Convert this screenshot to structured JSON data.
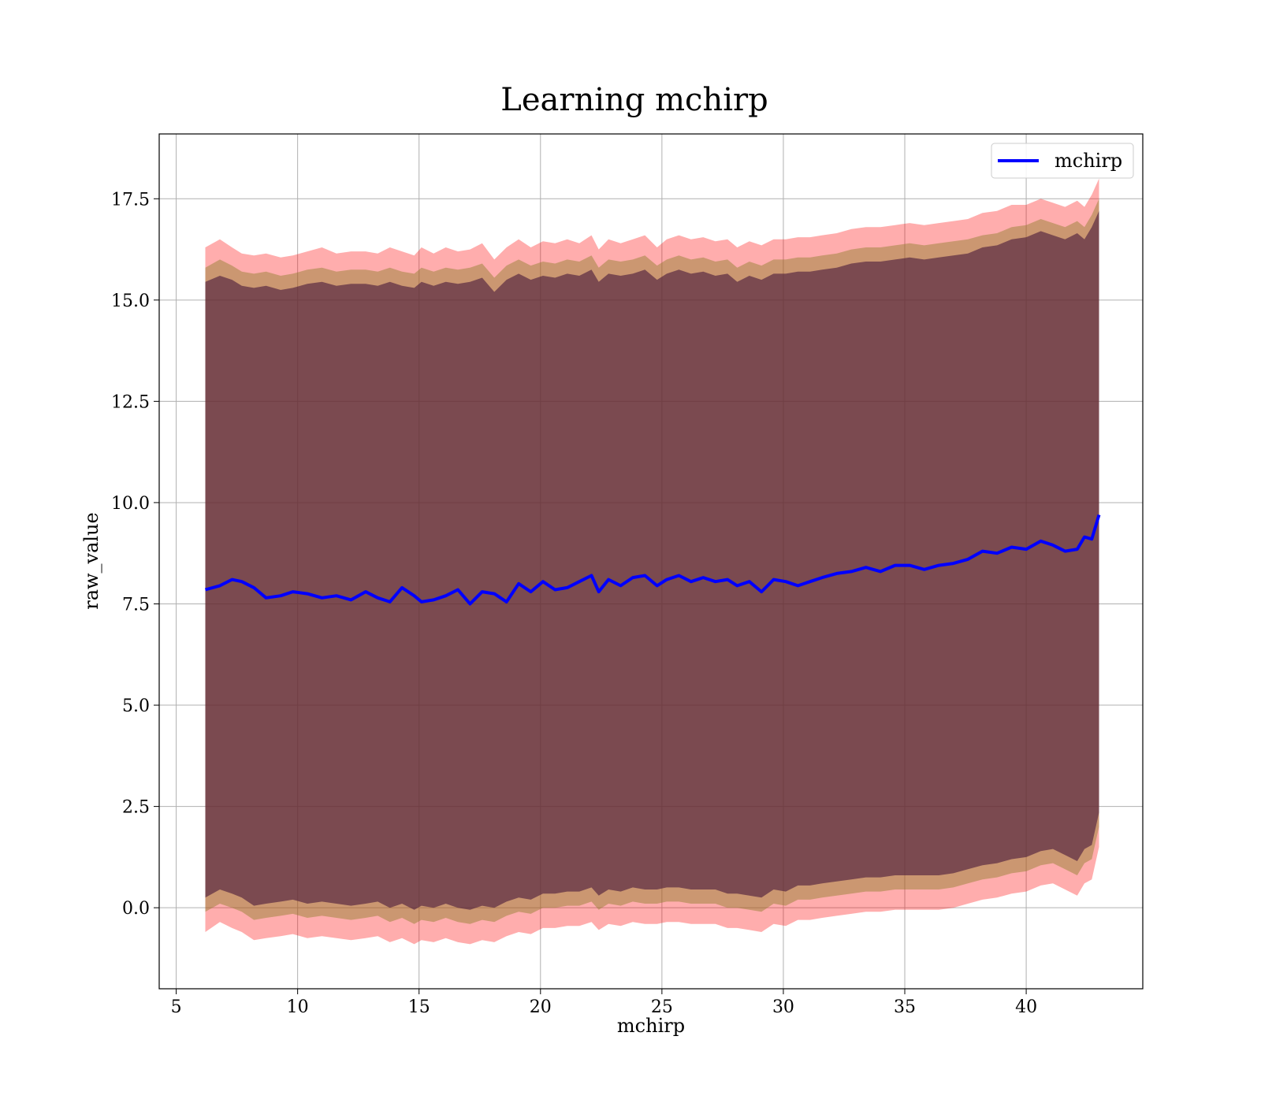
{
  "chart_data": {
    "type": "line",
    "title": "Learning mchirp",
    "xlabel": "mchirp",
    "ylabel": "raw_value",
    "xlim": [
      4.3,
      44.8
    ],
    "ylim": [
      -2.0,
      19.1
    ],
    "xticks": [
      5,
      10,
      15,
      20,
      25,
      30,
      35,
      40
    ],
    "yticks": [
      0.0,
      2.5,
      5.0,
      7.5,
      10.0,
      12.5,
      15.0,
      17.5
    ],
    "xtick_labels": [
      "5",
      "10",
      "15",
      "20",
      "25",
      "30",
      "35",
      "40"
    ],
    "ytick_labels": [
      "0.0",
      "2.5",
      "5.0",
      "7.5",
      "10.0",
      "12.5",
      "15.0",
      "17.5"
    ],
    "grid": true,
    "legend": {
      "position": "top-right",
      "entries": [
        "mchirp"
      ]
    },
    "series": [
      {
        "name": "mchirp",
        "color": "#0000ff",
        "x": [
          6.2,
          6.8,
          7.3,
          7.7,
          8.2,
          8.7,
          9.3,
          9.8,
          10.4,
          11.0,
          11.6,
          12.2,
          12.8,
          13.3,
          13.8,
          14.3,
          14.8,
          15.1,
          15.6,
          16.1,
          16.6,
          17.1,
          17.6,
          18.1,
          18.6,
          19.1,
          19.6,
          20.1,
          20.6,
          21.1,
          21.6,
          22.1,
          22.4,
          22.8,
          23.3,
          23.8,
          24.3,
          24.8,
          25.2,
          25.7,
          26.2,
          26.7,
          27.2,
          27.7,
          28.1,
          28.6,
          29.1,
          29.6,
          30.1,
          30.6,
          31.1,
          31.6,
          32.2,
          32.8,
          33.4,
          34.0,
          34.6,
          35.2,
          35.8,
          36.4,
          37.0,
          37.6,
          38.2,
          38.8,
          39.4,
          40.0,
          40.6,
          41.1,
          41.6,
          42.1,
          42.4,
          42.7,
          43.0
        ],
        "y": [
          7.85,
          7.95,
          8.1,
          8.05,
          7.9,
          7.65,
          7.7,
          7.8,
          7.75,
          7.65,
          7.7,
          7.6,
          7.8,
          7.65,
          7.55,
          7.9,
          7.7,
          7.55,
          7.6,
          7.7,
          7.85,
          7.5,
          7.8,
          7.75,
          7.55,
          8.0,
          7.8,
          8.05,
          7.85,
          7.9,
          8.05,
          8.2,
          7.8,
          8.1,
          7.95,
          8.15,
          8.2,
          7.95,
          8.1,
          8.2,
          8.05,
          8.15,
          8.05,
          8.1,
          7.95,
          8.05,
          7.8,
          8.1,
          8.05,
          7.95,
          8.05,
          8.15,
          8.25,
          8.3,
          8.4,
          8.3,
          8.45,
          8.45,
          8.35,
          8.45,
          8.5,
          8.6,
          8.8,
          8.75,
          8.9,
          8.85,
          9.05,
          8.95,
          8.8,
          8.85,
          9.15,
          9.1,
          9.7
        ]
      }
    ],
    "bands": [
      {
        "color": "#ff0000",
        "opacity": 0.32,
        "upper": [
          16.3,
          16.5,
          16.3,
          16.15,
          16.1,
          16.15,
          16.05,
          16.1,
          16.2,
          16.3,
          16.15,
          16.2,
          16.2,
          16.15,
          16.3,
          16.2,
          16.1,
          16.3,
          16.15,
          16.3,
          16.2,
          16.25,
          16.4,
          16.0,
          16.3,
          16.5,
          16.3,
          16.45,
          16.4,
          16.5,
          16.4,
          16.6,
          16.25,
          16.5,
          16.4,
          16.5,
          16.6,
          16.3,
          16.5,
          16.6,
          16.5,
          16.55,
          16.45,
          16.5,
          16.3,
          16.45,
          16.35,
          16.5,
          16.5,
          16.55,
          16.55,
          16.6,
          16.65,
          16.75,
          16.8,
          16.8,
          16.85,
          16.9,
          16.85,
          16.9,
          16.95,
          17.0,
          17.15,
          17.2,
          17.35,
          17.35,
          17.5,
          17.4,
          17.3,
          17.45,
          17.3,
          17.6,
          18.0
        ],
        "lower": [
          -0.6,
          -0.35,
          -0.5,
          -0.6,
          -0.8,
          -0.75,
          -0.7,
          -0.65,
          -0.75,
          -0.7,
          -0.75,
          -0.8,
          -0.75,
          -0.7,
          -0.85,
          -0.75,
          -0.9,
          -0.8,
          -0.85,
          -0.75,
          -0.85,
          -0.9,
          -0.8,
          -0.85,
          -0.7,
          -0.6,
          -0.65,
          -0.5,
          -0.5,
          -0.45,
          -0.45,
          -0.35,
          -0.55,
          -0.4,
          -0.45,
          -0.35,
          -0.4,
          -0.4,
          -0.35,
          -0.35,
          -0.4,
          -0.4,
          -0.4,
          -0.5,
          -0.5,
          -0.55,
          -0.6,
          -0.4,
          -0.45,
          -0.3,
          -0.3,
          -0.25,
          -0.2,
          -0.15,
          -0.1,
          -0.1,
          -0.05,
          -0.05,
          -0.05,
          -0.05,
          0.0,
          0.1,
          0.2,
          0.25,
          0.35,
          0.4,
          0.55,
          0.6,
          0.45,
          0.3,
          0.6,
          0.7,
          1.5
        ]
      },
      {
        "color": "#8b7d28",
        "opacity": 0.45,
        "upper": [
          15.8,
          16.0,
          15.85,
          15.7,
          15.65,
          15.7,
          15.6,
          15.65,
          15.75,
          15.8,
          15.7,
          15.75,
          15.75,
          15.7,
          15.8,
          15.7,
          15.65,
          15.8,
          15.7,
          15.8,
          15.75,
          15.8,
          15.9,
          15.55,
          15.85,
          16.0,
          15.85,
          15.95,
          15.9,
          16.0,
          15.95,
          16.1,
          15.8,
          16.0,
          15.95,
          16.0,
          16.1,
          15.85,
          16.0,
          16.1,
          16.0,
          16.05,
          15.95,
          16.0,
          15.8,
          15.95,
          15.85,
          16.0,
          16.0,
          16.05,
          16.05,
          16.1,
          16.15,
          16.25,
          16.3,
          16.3,
          16.35,
          16.4,
          16.35,
          16.4,
          16.45,
          16.5,
          16.6,
          16.65,
          16.8,
          16.85,
          17.0,
          16.9,
          16.8,
          16.95,
          16.8,
          17.1,
          17.5
        ],
        "lower": [
          -0.1,
          0.1,
          0.0,
          -0.1,
          -0.3,
          -0.25,
          -0.2,
          -0.15,
          -0.25,
          -0.2,
          -0.25,
          -0.3,
          -0.25,
          -0.2,
          -0.35,
          -0.25,
          -0.4,
          -0.3,
          -0.35,
          -0.25,
          -0.35,
          -0.4,
          -0.3,
          -0.35,
          -0.2,
          -0.1,
          -0.15,
          0.0,
          0.0,
          0.05,
          0.05,
          0.15,
          -0.05,
          0.1,
          0.05,
          0.15,
          0.1,
          0.1,
          0.15,
          0.15,
          0.1,
          0.1,
          0.1,
          0.0,
          0.0,
          -0.05,
          -0.1,
          0.1,
          0.05,
          0.2,
          0.2,
          0.25,
          0.3,
          0.35,
          0.4,
          0.4,
          0.45,
          0.45,
          0.45,
          0.45,
          0.5,
          0.6,
          0.7,
          0.75,
          0.85,
          0.9,
          1.05,
          1.1,
          0.95,
          0.8,
          1.1,
          1.2,
          2.0
        ]
      },
      {
        "color": "#4b1c3c",
        "opacity": 0.62,
        "upper": [
          15.45,
          15.6,
          15.5,
          15.35,
          15.3,
          15.35,
          15.25,
          15.3,
          15.4,
          15.45,
          15.35,
          15.4,
          15.4,
          15.35,
          15.45,
          15.35,
          15.3,
          15.45,
          15.35,
          15.45,
          15.4,
          15.45,
          15.55,
          15.2,
          15.5,
          15.65,
          15.5,
          15.6,
          15.55,
          15.65,
          15.6,
          15.75,
          15.45,
          15.65,
          15.6,
          15.65,
          15.75,
          15.5,
          15.65,
          15.75,
          15.65,
          15.7,
          15.6,
          15.65,
          15.45,
          15.6,
          15.5,
          15.65,
          15.65,
          15.7,
          15.7,
          15.75,
          15.8,
          15.9,
          15.95,
          15.95,
          16.0,
          16.05,
          16.0,
          16.05,
          16.1,
          16.15,
          16.3,
          16.35,
          16.5,
          16.55,
          16.7,
          16.6,
          16.5,
          16.65,
          16.5,
          16.8,
          17.2
        ],
        "lower": [
          0.25,
          0.45,
          0.35,
          0.25,
          0.05,
          0.1,
          0.15,
          0.2,
          0.1,
          0.15,
          0.1,
          0.05,
          0.1,
          0.15,
          0.0,
          0.1,
          -0.05,
          0.05,
          0.0,
          0.1,
          0.0,
          -0.05,
          0.05,
          0.0,
          0.15,
          0.25,
          0.2,
          0.35,
          0.35,
          0.4,
          0.4,
          0.5,
          0.3,
          0.45,
          0.4,
          0.5,
          0.45,
          0.45,
          0.5,
          0.5,
          0.45,
          0.45,
          0.45,
          0.35,
          0.35,
          0.3,
          0.25,
          0.45,
          0.4,
          0.55,
          0.55,
          0.6,
          0.65,
          0.7,
          0.75,
          0.75,
          0.8,
          0.8,
          0.8,
          0.8,
          0.85,
          0.95,
          1.05,
          1.1,
          1.2,
          1.25,
          1.4,
          1.45,
          1.3,
          1.15,
          1.45,
          1.55,
          2.35
        ]
      }
    ]
  }
}
